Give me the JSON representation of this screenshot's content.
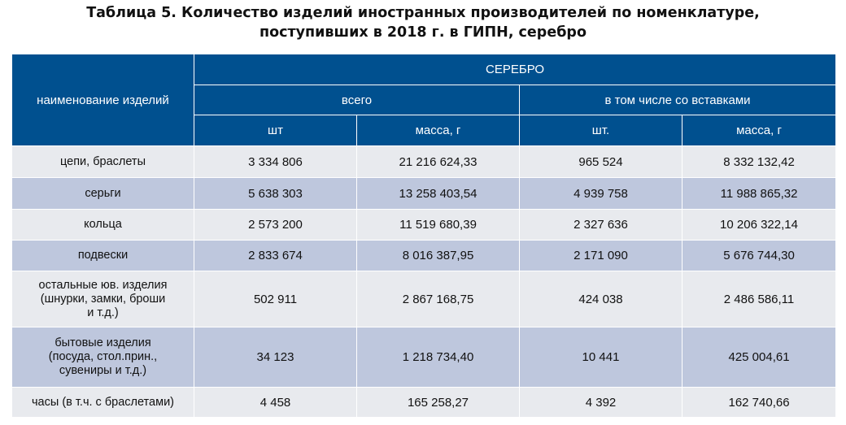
{
  "title": {
    "line1": "Таблица 5. Количество  изделий иностранных производителей по номенклатуре,",
    "line2": "поступивших в 2018 г. в ГИПН, серебро"
  },
  "header": {
    "name_col": "наименование изделий",
    "group": "СЕРЕБРО",
    "total": "всего",
    "with_inserts": "в том числе со вставками",
    "sub": [
      "шт",
      "масса, г",
      "шт.",
      "масса, г"
    ]
  },
  "rows": [
    {
      "name": [
        "цепи, браслеты"
      ],
      "values": [
        "3 334 806",
        "21 216 624,33",
        "965 524",
        "8 332 132,42"
      ]
    },
    {
      "name": [
        "серьги"
      ],
      "values": [
        "5 638 303",
        "13 258 403,54",
        "4 939 758",
        "11 988 865,32"
      ]
    },
    {
      "name": [
        "кольца"
      ],
      "values": [
        "2 573 200",
        "11 519 680,39",
        "2 327 636",
        "10 206 322,14"
      ]
    },
    {
      "name": [
        "подвески"
      ],
      "values": [
        "2 833 674",
        "8 016 387,95",
        "2 171 090",
        "5 676 744,30"
      ]
    },
    {
      "name": [
        "остальные юв. изделия",
        "(шнурки, замки, броши",
        "и т.д.)"
      ],
      "values": [
        "502 911",
        "2 867 168,75",
        "424 038",
        "2 486 586,11"
      ]
    },
    {
      "name": [
        "бытовые изделия",
        "(посуда, стол.прин.,",
        "сувениры и т.д.)"
      ],
      "values": [
        "34 123",
        "1 218 734,40",
        "10 441",
        "425 004,61"
      ]
    },
    {
      "name": [
        "часы (в т.ч. с браслетами)"
      ],
      "values": [
        "4 458",
        "165 258,27",
        "4 392",
        "162 740,66"
      ]
    }
  ]
}
